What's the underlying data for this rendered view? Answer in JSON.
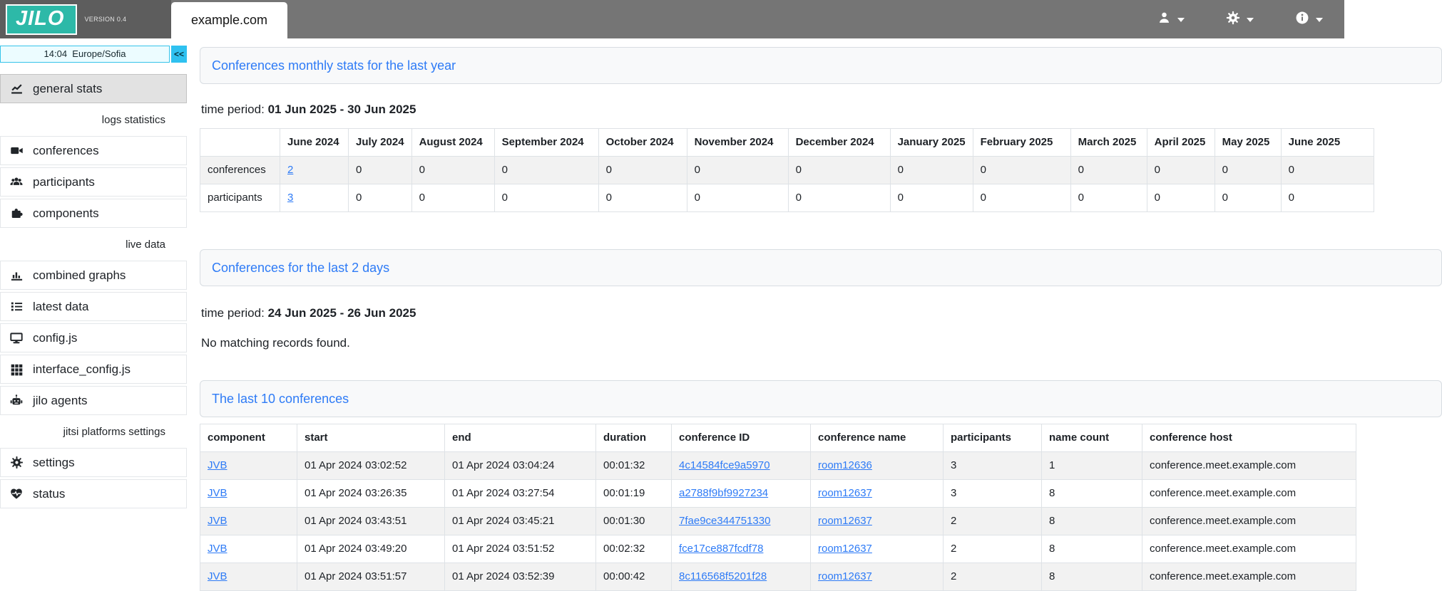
{
  "header": {
    "logo": "JILO",
    "version": "VERSION 0.4",
    "tab": "example.com"
  },
  "sidebar": {
    "time": {
      "value": "14:04  Europe/Sofia",
      "collapse_label": "<<"
    },
    "items": [
      {
        "label": "general stats",
        "icon": "chart-line-icon",
        "active": true
      },
      {
        "label": "logs statistics",
        "type": "section"
      },
      {
        "label": "conferences",
        "icon": "video-camera-icon"
      },
      {
        "label": "participants",
        "icon": "users-icon"
      },
      {
        "label": "components",
        "icon": "puzzle-icon"
      },
      {
        "label": "live data",
        "type": "section"
      },
      {
        "label": "combined graphs",
        "icon": "bar-chart-icon"
      },
      {
        "label": "latest data",
        "icon": "list-icon"
      },
      {
        "label": "config.js",
        "icon": "monitor-icon"
      },
      {
        "label": "interface_config.js",
        "icon": "grid-icon"
      },
      {
        "label": "jilo agents",
        "icon": "robot-icon"
      },
      {
        "label": "jitsi platforms settings",
        "type": "section"
      },
      {
        "label": "settings",
        "icon": "gear-icon"
      },
      {
        "label": "status",
        "icon": "heart-pulse-icon"
      }
    ]
  },
  "main": {
    "monthly": {
      "title": "Conferences monthly stats for the last year",
      "time_period_label": "time period:",
      "time_period": "01 Jun 2025 - 30 Jun 2025",
      "table": {
        "columns": [
          "",
          "June 2024",
          "July 2024",
          "August 2024",
          "September 2024",
          "October 2024",
          "November 2024",
          "December 2024",
          "January 2025",
          "February 2025",
          "March 2025",
          "April 2025",
          "May 2025",
          "June 2025"
        ],
        "link_col": 0,
        "rows": [
          {
            "label": "conferences",
            "values": [
              "2",
              "0",
              "0",
              "0",
              "0",
              "0",
              "0",
              "0",
              "0",
              "0",
              "0",
              "0",
              "0"
            ]
          },
          {
            "label": "participants",
            "values": [
              "3",
              "0",
              "0",
              "0",
              "0",
              "0",
              "0",
              "0",
              "0",
              "0",
              "0",
              "0",
              "0"
            ]
          }
        ]
      }
    },
    "last2days": {
      "title": "Conferences for the last 2 days",
      "time_period_label": "time period:",
      "time_period": "24 Jun 2025 - 26 Jun 2025",
      "empty_message": "No matching records found."
    },
    "last10": {
      "title": "The last 10 conferences",
      "columns": [
        "component",
        "start",
        "end",
        "duration",
        "conference ID",
        "conference name",
        "participants",
        "name count",
        "conference host"
      ],
      "col_keys": [
        "component",
        "start",
        "end",
        "duration",
        "conference_id",
        "conference_name",
        "participants",
        "name_count",
        "conference_host"
      ],
      "link_keys": [
        "component",
        "conference_id",
        "conference_name"
      ],
      "rows": [
        {
          "component": "JVB",
          "start": "01 Apr 2024 03:02:52",
          "end": "01 Apr 2024 03:04:24",
          "duration": "00:01:32",
          "conference_id": "4c14584fce9a5970",
          "conference_name": "room12636",
          "participants": "3",
          "name_count": "1",
          "conference_host": "conference.meet.example.com"
        },
        {
          "component": "JVB",
          "start": "01 Apr 2024 03:26:35",
          "end": "01 Apr 2024 03:27:54",
          "duration": "00:01:19",
          "conference_id": "a2788f9bf9927234",
          "conference_name": "room12637",
          "participants": "3",
          "name_count": "8",
          "conference_host": "conference.meet.example.com"
        },
        {
          "component": "JVB",
          "start": "01 Apr 2024 03:43:51",
          "end": "01 Apr 2024 03:45:21",
          "duration": "00:01:30",
          "conference_id": "7fae9ce344751330",
          "conference_name": "room12637",
          "participants": "2",
          "name_count": "8",
          "conference_host": "conference.meet.example.com"
        },
        {
          "component": "JVB",
          "start": "01 Apr 2024 03:49:20",
          "end": "01 Apr 2024 03:51:52",
          "duration": "00:02:32",
          "conference_id": "fce17ce887fcdf78",
          "conference_name": "room12637",
          "participants": "2",
          "name_count": "8",
          "conference_host": "conference.meet.example.com"
        },
        {
          "component": "JVB",
          "start": "01 Apr 2024 03:51:57",
          "end": "01 Apr 2024 03:52:39",
          "duration": "00:00:42",
          "conference_id": "8c116568f5201f28",
          "conference_name": "room12637",
          "participants": "2",
          "name_count": "8",
          "conference_host": "conference.meet.example.com"
        }
      ]
    }
  },
  "colors": {
    "brand_teal": "#2db9a8",
    "header_gray": "#757575",
    "link_blue": "#2e7bf6",
    "time_widget_cyan": "#2fc1f0"
  }
}
